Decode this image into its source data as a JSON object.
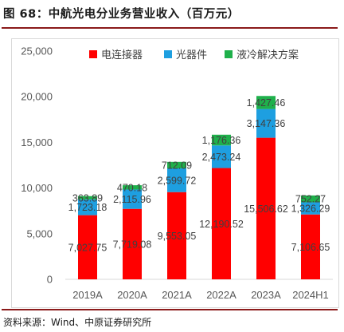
{
  "header": {
    "title": "图 68：中航光电分业务营业收入（百万元）"
  },
  "footer": {
    "source": "资料来源：Wind、中原证券研究所"
  },
  "chart_data": {
    "type": "bar",
    "stacked": true,
    "categories": [
      "2019A",
      "2020A",
      "2021A",
      "2022A",
      "2023A",
      "2024H1"
    ],
    "series": [
      {
        "name": "电连接器",
        "color": "#ff0000",
        "values": [
          7027.75,
          7719.08,
          9553.05,
          12190.52,
          15506.62,
          7106.65
        ],
        "labels": [
          "7,027.75",
          "7,719.08",
          "9,553.05",
          "12,190.52",
          "15,506.62",
          "7,106.65"
        ]
      },
      {
        "name": "光器件",
        "color": "#1e9fe0",
        "values": [
          1723.18,
          2115.96,
          2599.72,
          2473.24,
          3147.36,
          1326.29
        ],
        "labels": [
          "1,723.18",
          "2,115.96",
          "2,599.72",
          "2,473.24",
          "3,147.36",
          "1,326.29"
        ]
      },
      {
        "name": "液冷解决方案",
        "color": "#1fb04b",
        "values": [
          363.89,
          470.18,
          712.09,
          1176.36,
          1427.46,
          752.27
        ],
        "labels": [
          "363.89",
          "470.18",
          "712.09",
          "1,176.36",
          "1,427.46",
          "752.27"
        ]
      }
    ],
    "ylim": [
      0,
      25000
    ],
    "yticks": [
      0,
      5000,
      10000,
      15000,
      20000,
      25000
    ],
    "ytick_labels": [
      "0",
      "5,000",
      "10,000",
      "15,000",
      "20,000",
      "25,000"
    ],
    "grid": false,
    "legend_position": "top"
  }
}
